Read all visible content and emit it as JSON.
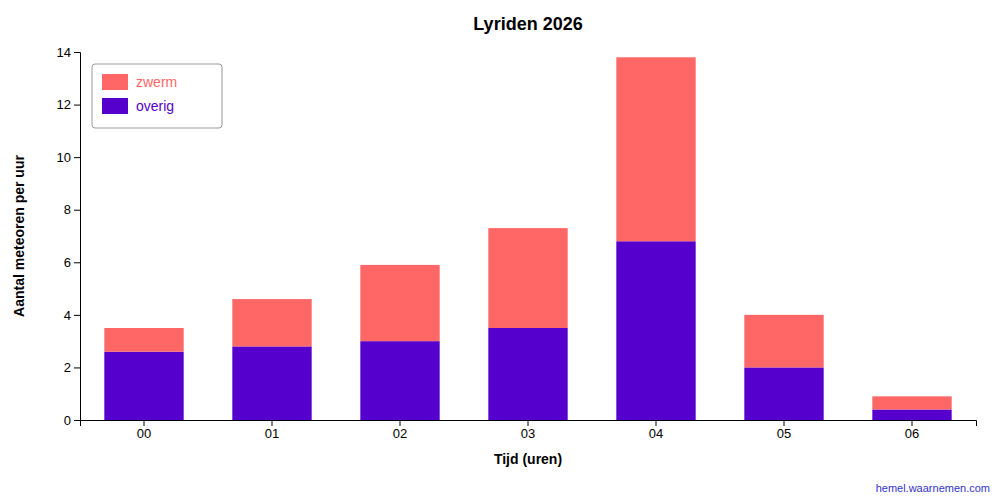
{
  "chart_data": {
    "type": "bar",
    "stacked": true,
    "title": "Lyriden 2026",
    "xlabel": "Tijd (uren)",
    "ylabel": "Aantal meteoren per uur",
    "categories": [
      "00",
      "01",
      "02",
      "03",
      "04",
      "05",
      "06"
    ],
    "series": [
      {
        "name": "overig",
        "color": "#5500CC",
        "values": [
          2.6,
          2.8,
          3.0,
          3.5,
          6.8,
          2.0,
          0.4
        ]
      },
      {
        "name": "zwerm",
        "color": "#FF6666",
        "values": [
          0.9,
          1.8,
          2.9,
          3.8,
          7.0,
          2.0,
          0.5
        ]
      }
    ],
    "ylim": [
      0,
      14
    ],
    "yticks": [
      0,
      2,
      4,
      6,
      8,
      10,
      12,
      14
    ],
    "grid": false,
    "legend": "upper left",
    "annotations": [
      {
        "text": "hemel.waarnemen.com",
        "color": "#3333CC"
      }
    ]
  }
}
